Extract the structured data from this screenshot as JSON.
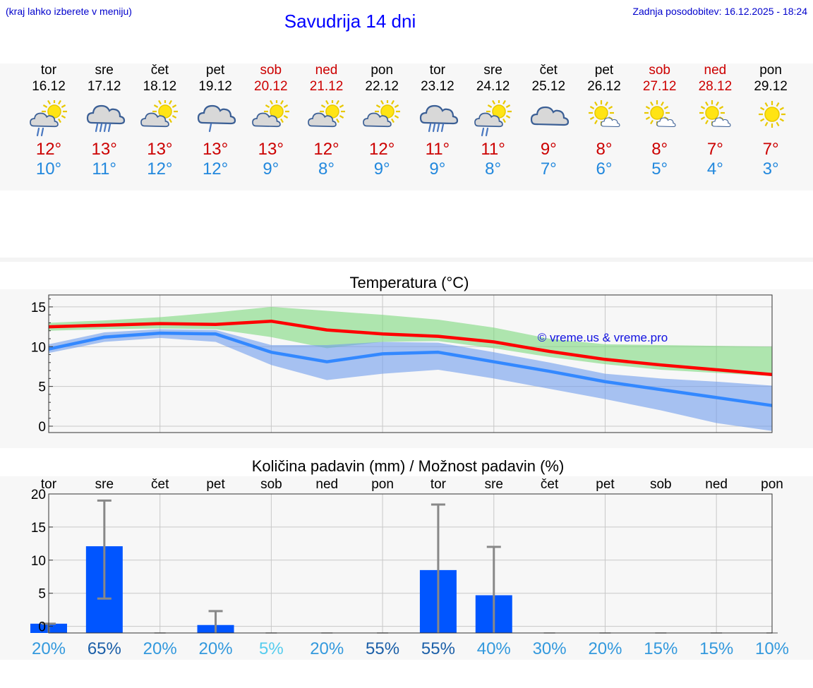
{
  "header": {
    "menu_hint": "(kraj lahko izberete v meniju)",
    "title": "Savudrija 14 dni",
    "updated": "Zadnja posodobitev: 16.12.2025 - 18:24"
  },
  "days": [
    {
      "wd": "tor",
      "date": "16.12",
      "weekend": false,
      "icon": "sun-cloud-light-rain-icon",
      "tmax": "12°",
      "tmin": "10°"
    },
    {
      "wd": "sre",
      "date": "17.12",
      "weekend": false,
      "icon": "cloud-heavy-rain-icon",
      "tmax": "13°",
      "tmin": "11°"
    },
    {
      "wd": "čet",
      "date": "18.12",
      "weekend": false,
      "icon": "sun-cloud-icon",
      "tmax": "13°",
      "tmin": "12°"
    },
    {
      "wd": "pet",
      "date": "19.12",
      "weekend": false,
      "icon": "cloud-light-rain-icon",
      "tmax": "13°",
      "tmin": "12°"
    },
    {
      "wd": "sob",
      "date": "20.12",
      "weekend": true,
      "icon": "sun-cloud-icon",
      "tmax": "13°",
      "tmin": "9°"
    },
    {
      "wd": "ned",
      "date": "21.12",
      "weekend": true,
      "icon": "sun-cloud-icon",
      "tmax": "12°",
      "tmin": "8°"
    },
    {
      "wd": "pon",
      "date": "22.12",
      "weekend": false,
      "icon": "sun-cloud-icon",
      "tmax": "12°",
      "tmin": "9°"
    },
    {
      "wd": "tor",
      "date": "23.12",
      "weekend": false,
      "icon": "cloud-heavy-rain-icon",
      "tmax": "11°",
      "tmin": "9°"
    },
    {
      "wd": "sre",
      "date": "24.12",
      "weekend": false,
      "icon": "sun-cloud-light-rain-icon",
      "tmax": "11°",
      "tmin": "8°"
    },
    {
      "wd": "čet",
      "date": "25.12",
      "weekend": false,
      "icon": "cloud-icon",
      "tmax": "9°",
      "tmin": "7°"
    },
    {
      "wd": "pet",
      "date": "26.12",
      "weekend": false,
      "icon": "sun-small-cloud-icon",
      "tmax": "8°",
      "tmin": "6°"
    },
    {
      "wd": "sob",
      "date": "27.12",
      "weekend": true,
      "icon": "sun-small-cloud-icon",
      "tmax": "8°",
      "tmin": "5°"
    },
    {
      "wd": "ned",
      "date": "28.12",
      "weekend": true,
      "icon": "sun-small-cloud-icon",
      "tmax": "7°",
      "tmin": "4°"
    },
    {
      "wd": "pon",
      "date": "29.12",
      "weekend": false,
      "icon": "sun-icon",
      "tmax": "7°",
      "tmin": "3°"
    }
  ],
  "chart_data": [
    {
      "type": "line",
      "title": "Temperatura (°C)",
      "ylim": [
        -0.8,
        16.5
      ],
      "yticks": [
        0,
        5,
        10,
        15
      ],
      "x": [
        0,
        1,
        2,
        3,
        4,
        5,
        6,
        7,
        8,
        9,
        10,
        11,
        12,
        13
      ],
      "watermark": "© vreme.us & vreme.pro",
      "series": [
        {
          "name": "max",
          "color": "#ff0000",
          "values": [
            12.5,
            12.7,
            12.9,
            12.8,
            13.2,
            12.1,
            11.6,
            11.3,
            10.6,
            9.4,
            8.4,
            7.7,
            7.1,
            6.5
          ]
        },
        {
          "name": "min",
          "color": "#3388ff",
          "values": [
            9.7,
            11.2,
            11.7,
            11.6,
            9.3,
            8.1,
            9.1,
            9.3,
            8.1,
            6.9,
            5.6,
            4.6,
            3.6,
            2.6
          ]
        }
      ],
      "bands": [
        {
          "name": "max-range",
          "color": "#7dd87d",
          "upper": [
            13.0,
            13.3,
            13.7,
            14.3,
            15.0,
            14.5,
            14.0,
            13.4,
            12.4,
            11.0,
            10.3,
            10.2,
            10.1,
            10.0
          ],
          "lower": [
            12.0,
            12.2,
            12.3,
            12.2,
            11.2,
            9.8,
            10.6,
            10.7,
            9.8,
            8.7,
            7.8,
            7.1,
            6.7,
            6.3
          ]
        },
        {
          "name": "min-range",
          "color": "#6f9cec",
          "upper": [
            10.3,
            11.8,
            12.2,
            12.1,
            10.2,
            10.2,
            10.6,
            10.5,
            9.3,
            8.0,
            6.6,
            6.0,
            5.6,
            5.1
          ],
          "lower": [
            9.2,
            10.6,
            11.1,
            10.6,
            7.7,
            5.8,
            6.6,
            7.1,
            6.0,
            4.7,
            3.4,
            2.0,
            0.4,
            -0.6
          ]
        }
      ]
    },
    {
      "type": "bar",
      "title": "Količina padavin (mm) / Možnost padavin (%)",
      "categories": [
        "tor",
        "sre",
        "čet",
        "pet",
        "sob",
        "ned",
        "pon",
        "tor",
        "sre",
        "čet",
        "pet",
        "sob",
        "ned",
        "pon"
      ],
      "ylim": [
        -1,
        20
      ],
      "yticks": [
        0,
        5,
        10,
        15,
        20
      ],
      "bar_color": "#0055ff",
      "values": [
        0.4,
        12.1,
        0,
        0.2,
        0,
        0,
        0,
        8.5,
        4.7,
        0,
        0,
        0,
        0,
        0
      ],
      "err_low": [
        0,
        4.2,
        0,
        0,
        0,
        0,
        0,
        0,
        0,
        0,
        0,
        0,
        0,
        0
      ],
      "err_high": [
        0.4,
        19.0,
        0,
        2.3,
        0,
        0,
        0,
        18.4,
        12.0,
        0,
        0,
        0,
        0,
        0
      ],
      "probability": [
        "20%",
        "65%",
        "20%",
        "20%",
        "5%",
        "20%",
        "55%",
        "55%",
        "40%",
        "30%",
        "20%",
        "15%",
        "15%",
        "10%"
      ],
      "probability_colors": [
        "#3399dd",
        "#1b5fa8",
        "#3399dd",
        "#3399dd",
        "#55ccee",
        "#3399dd",
        "#1b5fa8",
        "#1b5fa8",
        "#3399dd",
        "#3399dd",
        "#3399dd",
        "#3399dd",
        "#3399dd",
        "#3399dd"
      ]
    }
  ]
}
